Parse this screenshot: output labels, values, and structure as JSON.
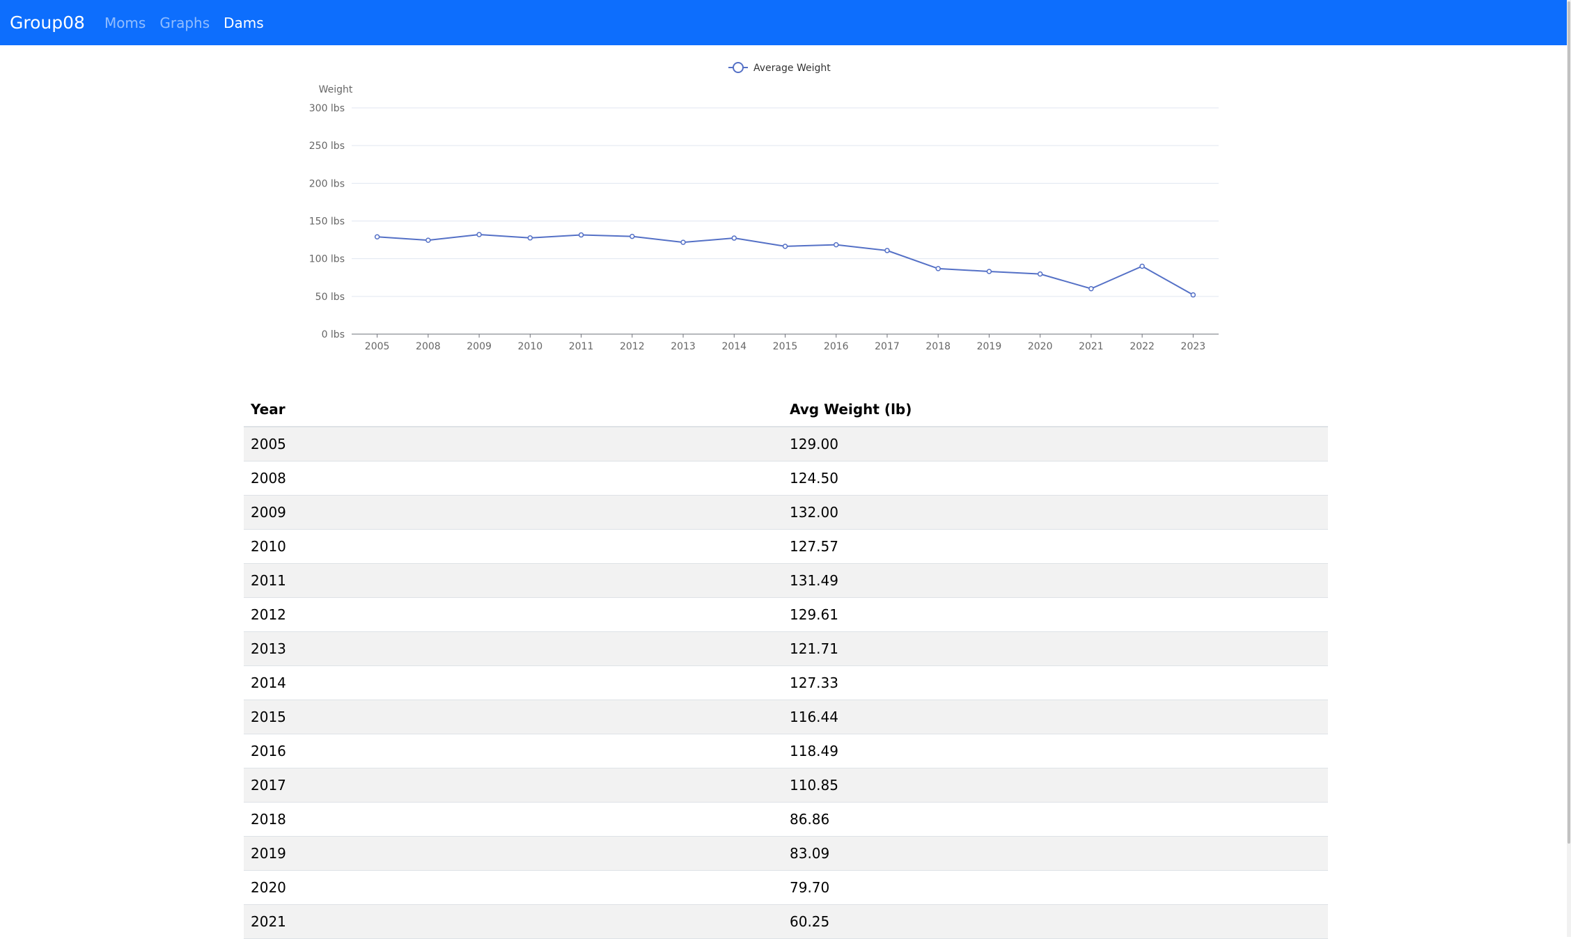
{
  "navbar": {
    "brand": "Group08",
    "links": [
      {
        "label": "Moms",
        "active": false
      },
      {
        "label": "Graphs",
        "active": false
      },
      {
        "label": "Dams",
        "active": true
      }
    ],
    "color": "#0d6efd"
  },
  "chart_data": {
    "type": "line",
    "x": [
      "2005",
      "2008",
      "2009",
      "2010",
      "2011",
      "2012",
      "2013",
      "2014",
      "2015",
      "2016",
      "2017",
      "2018",
      "2019",
      "2020",
      "2021",
      "2022",
      "2023"
    ],
    "series": [
      {
        "name": "Average Weight",
        "color": "#5470c6",
        "values": [
          129.0,
          124.5,
          132.0,
          127.57,
          131.49,
          129.61,
          121.71,
          127.33,
          116.44,
          118.49,
          110.85,
          86.86,
          83.09,
          79.7,
          60.25,
          90.0,
          52.0
        ]
      }
    ],
    "ylabel": "Weight",
    "y_ticks": [
      "0 lbs",
      "50 lbs",
      "100 lbs",
      "150 lbs",
      "200 lbs",
      "250 lbs",
      "300 lbs"
    ],
    "ylim": [
      0,
      300
    ],
    "grid": true,
    "legend": "top-center"
  },
  "table": {
    "headers": [
      "Year",
      "Avg Weight (lb)"
    ],
    "rows": [
      [
        "2005",
        "129.00"
      ],
      [
        "2008",
        "124.50"
      ],
      [
        "2009",
        "132.00"
      ],
      [
        "2010",
        "127.57"
      ],
      [
        "2011",
        "131.49"
      ],
      [
        "2012",
        "129.61"
      ],
      [
        "2013",
        "121.71"
      ],
      [
        "2014",
        "127.33"
      ],
      [
        "2015",
        "116.44"
      ],
      [
        "2016",
        "118.49"
      ],
      [
        "2017",
        "110.85"
      ],
      [
        "2018",
        "86.86"
      ],
      [
        "2019",
        "83.09"
      ],
      [
        "2020",
        "79.70"
      ],
      [
        "2021",
        "60.25"
      ]
    ]
  }
}
